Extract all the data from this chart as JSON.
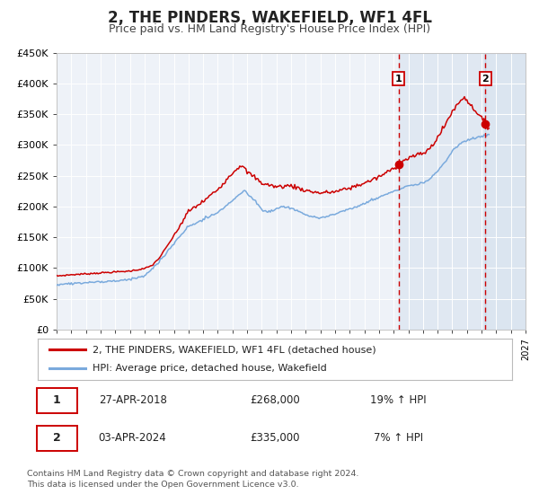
{
  "title": "2, THE PINDERS, WAKEFIELD, WF1 4FL",
  "subtitle": "Price paid vs. HM Land Registry's House Price Index (HPI)",
  "title_fontsize": 12,
  "subtitle_fontsize": 9,
  "background_color": "#ffffff",
  "plot_bg_color": "#eef2f8",
  "grid_color": "#ffffff",
  "red_line_color": "#cc0000",
  "blue_line_color": "#7aaadd",
  "vline_color": "#cc0000",
  "sale1_x": 2018.33,
  "sale1_value": 268000,
  "sale1_label": "27-APR-2018",
  "sale1_price": "£268,000",
  "sale1_hpi": "19% ↑ HPI",
  "sale2_x": 2024.27,
  "sale2_value": 335000,
  "sale2_label": "03-APR-2024",
  "sale2_price": "£335,000",
  "sale2_hpi": "7% ↑ HPI",
  "legend_label_red": "2, THE PINDERS, WAKEFIELD, WF1 4FL (detached house)",
  "legend_label_blue": "HPI: Average price, detached house, Wakefield",
  "footer_text": "Contains HM Land Registry data © Crown copyright and database right 2024.\nThis data is licensed under the Open Government Licence v3.0.",
  "ylim": [
    0,
    450000
  ],
  "yticks": [
    0,
    50000,
    100000,
    150000,
    200000,
    250000,
    300000,
    350000,
    400000,
    450000
  ],
  "ytick_labels": [
    "£0",
    "£50K",
    "£100K",
    "£150K",
    "£200K",
    "£250K",
    "£300K",
    "£350K",
    "£400K",
    "£450K"
  ],
  "xstart": 1995.0,
  "xend": 2027.0
}
